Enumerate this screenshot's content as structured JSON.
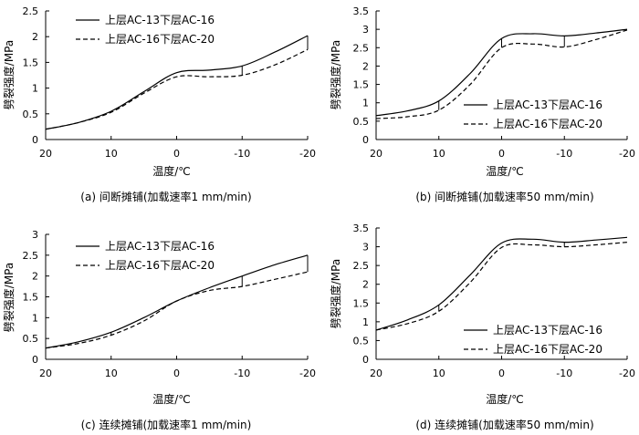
{
  "chart_data": [
    {
      "type": "line",
      "caption": "(a) 间断摊铺(加载速率1 mm/min)",
      "xlabel": "温度/℃",
      "ylabel": "劈裂强度/MPa",
      "xlim": [
        20,
        -20
      ],
      "ylim": [
        0,
        2.5
      ],
      "x_ticks": [
        "20",
        "10",
        "0",
        "-10",
        "-20"
      ],
      "y_ticks": [
        "0",
        "0.5",
        "1",
        "1.5",
        "2",
        "2.5"
      ],
      "legend_position": "top-left",
      "series": [
        {
          "name": "上层AC-13下层AC-16",
          "style": "solid",
          "x": [
            20,
            15,
            10,
            5,
            0,
            -5,
            -10,
            -15,
            -20
          ],
          "values": [
            0.2,
            0.33,
            0.55,
            0.93,
            1.3,
            1.35,
            1.43,
            1.7,
            2.02
          ]
        },
        {
          "name": "上层AC-16下层AC-20",
          "style": "dashed",
          "x": [
            20,
            15,
            10,
            5,
            0,
            -5,
            -10,
            -15,
            -20
          ],
          "values": [
            0.2,
            0.33,
            0.53,
            0.9,
            1.22,
            1.22,
            1.25,
            1.45,
            1.75
          ]
        }
      ],
      "markers_x": [
        10,
        -10,
        -20
      ]
    },
    {
      "type": "line",
      "caption": "(b) 间断摊铺(加载速率50 mm/min)",
      "xlabel": "温度/℃",
      "ylabel": "劈裂强度/MPa",
      "xlim": [
        20,
        -20
      ],
      "ylim": [
        0,
        3.5
      ],
      "x_ticks": [
        "20",
        "10",
        "0",
        "-10",
        "-20"
      ],
      "y_ticks": [
        "0",
        "0.5",
        "1",
        "1.5",
        "2",
        "2.5",
        "3",
        "3.5"
      ],
      "legend_position": "bottom-right",
      "series": [
        {
          "name": "上层AC-13下层AC-16",
          "style": "solid",
          "x": [
            20,
            15,
            10,
            5,
            0,
            -5,
            -10,
            -15,
            -20
          ],
          "values": [
            0.65,
            0.78,
            1.05,
            1.8,
            2.75,
            2.88,
            2.82,
            2.9,
            3.0
          ]
        },
        {
          "name": "上层AC-16下层AC-20",
          "style": "dashed",
          "x": [
            20,
            15,
            10,
            5,
            0,
            -5,
            -10,
            -15,
            -20
          ],
          "values": [
            0.57,
            0.62,
            0.8,
            1.5,
            2.5,
            2.6,
            2.52,
            2.72,
            2.98
          ]
        }
      ],
      "markers_x": [
        10,
        0,
        -10
      ]
    },
    {
      "type": "line",
      "caption": "(c) 连续摊铺(加载速率1 mm/min)",
      "xlabel": "温度/℃",
      "ylabel": "劈裂强度/MPa",
      "xlim": [
        20,
        -20
      ],
      "ylim": [
        0,
        3
      ],
      "x_ticks": [
        "20",
        "10",
        "0",
        "-10",
        "-20"
      ],
      "y_ticks": [
        "0",
        "0.5",
        "1",
        "1.5",
        "2",
        "2.5",
        "3"
      ],
      "legend_position": "top-left",
      "series": [
        {
          "name": "上层AC-13下层AC-16",
          "style": "solid",
          "x": [
            20,
            15,
            10,
            5,
            0,
            -5,
            -10,
            -15,
            -20
          ],
          "values": [
            0.27,
            0.42,
            0.65,
            1.0,
            1.4,
            1.72,
            2.0,
            2.27,
            2.5
          ]
        },
        {
          "name": "上层AC-16下层AC-20",
          "style": "dashed",
          "x": [
            20,
            15,
            10,
            5,
            0,
            -5,
            -10,
            -15,
            -20
          ],
          "values": [
            0.27,
            0.38,
            0.58,
            0.92,
            1.4,
            1.65,
            1.75,
            1.92,
            2.1
          ]
        }
      ],
      "markers_x": [
        10,
        -10,
        -20
      ]
    },
    {
      "type": "line",
      "caption": "(d) 连续摊铺(加载速率50 mm/min)",
      "xlabel": "温度/℃",
      "ylabel": "劈裂强度/MPa",
      "xlim": [
        20,
        -20
      ],
      "ylim": [
        0,
        3.5
      ],
      "x_ticks": [
        "20",
        "10",
        "0",
        "-10",
        "-20"
      ],
      "y_ticks": [
        "0",
        "0.5",
        "1",
        "1.5",
        "2",
        "2.5",
        "3",
        "3.5"
      ],
      "legend_position": "bottom-right",
      "series": [
        {
          "name": "上层AC-13下层AC-16",
          "style": "solid",
          "x": [
            20,
            15,
            10,
            5,
            0,
            -5,
            -10,
            -15,
            -20
          ],
          "values": [
            0.78,
            1.05,
            1.45,
            2.25,
            3.1,
            3.2,
            3.12,
            3.18,
            3.25
          ]
        },
        {
          "name": "上层AC-16下层AC-20",
          "style": "dashed",
          "x": [
            20,
            15,
            10,
            5,
            0,
            -5,
            -10,
            -15,
            -20
          ],
          "values": [
            0.78,
            0.95,
            1.28,
            2.05,
            2.98,
            3.05,
            3.0,
            3.05,
            3.12
          ]
        }
      ],
      "markers_x": [
        10,
        -10
      ]
    }
  ]
}
